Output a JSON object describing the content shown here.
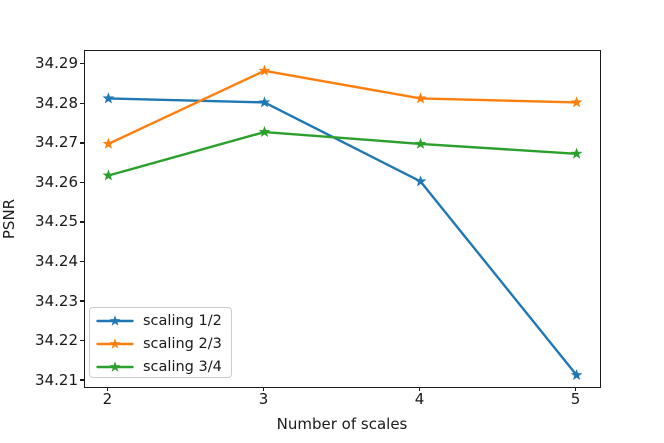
{
  "chart_data": {
    "type": "line",
    "title": "",
    "xlabel": "Number of scales",
    "ylabel": "PSNR",
    "x": [
      2,
      3,
      4,
      5
    ],
    "series": [
      {
        "name": "scaling 1/2",
        "color": "#1f77b4",
        "marker": "star",
        "values": [
          34.2815,
          34.2805,
          34.2605,
          34.2115
        ]
      },
      {
        "name": "scaling 2/3",
        "color": "#ff7f0e",
        "marker": "star",
        "values": [
          34.27,
          34.2885,
          34.2815,
          34.2805
        ]
      },
      {
        "name": "scaling 3/4",
        "color": "#2ca02c",
        "marker": "star",
        "values": [
          34.262,
          34.273,
          34.27,
          34.2675
        ]
      }
    ],
    "xlim": [
      1.85,
      5.15
    ],
    "ylim": [
      34.2085,
      34.2935
    ],
    "xticks": [
      2,
      3,
      4,
      5
    ],
    "xtick_labels": [
      "2",
      "3",
      "4",
      "5"
    ],
    "yticks": [
      34.21,
      34.22,
      34.23,
      34.24,
      34.25,
      34.26,
      34.27,
      34.28,
      34.29
    ],
    "ytick_labels": [
      "34.21",
      "34.22",
      "34.23",
      "34.24",
      "34.25",
      "34.26",
      "34.27",
      "34.28",
      "34.29"
    ],
    "grid": false,
    "legend_position": "lower left",
    "axis_color": "#1a1a1a",
    "background_color": "#ffffff"
  }
}
